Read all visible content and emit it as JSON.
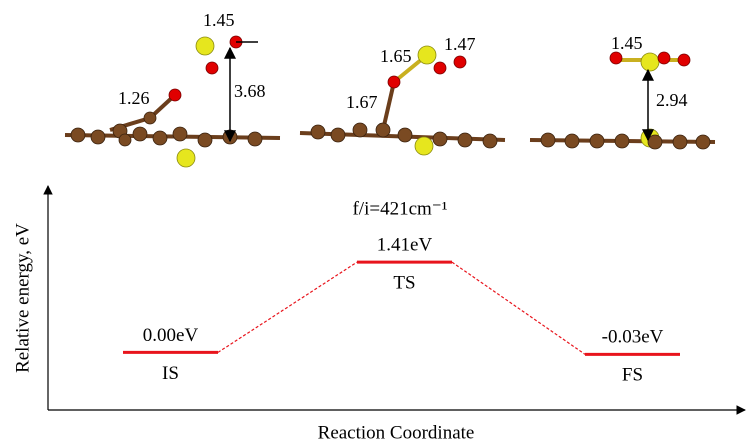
{
  "chart_data": {
    "type": "energy",
    "x_label": "Reaction Coordinate",
    "y_label": "Relative energy, eV",
    "categories": [
      "IS",
      "TS",
      "FS"
    ],
    "values": [
      0.0,
      1.41,
      -0.03
    ],
    "value_labels": [
      "0.00eV",
      "1.41eV",
      "-0.03eV"
    ],
    "color": "#e8141c",
    "ylim": [
      -0.9,
      2.6
    ],
    "annotation": "f/i=421cm⁻¹",
    "structure_labels": [
      [
        "1.45",
        "3.68",
        "1.26"
      ],
      [
        "1.65",
        "1.47",
        "1.67"
      ],
      [
        "1.45",
        "2.94"
      ]
    ]
  }
}
